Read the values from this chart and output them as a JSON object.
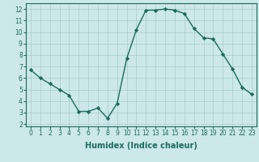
{
  "x": [
    0,
    1,
    2,
    3,
    4,
    5,
    6,
    7,
    8,
    9,
    10,
    11,
    12,
    13,
    14,
    15,
    16,
    17,
    18,
    19,
    20,
    21,
    22,
    23
  ],
  "y": [
    6.7,
    6.0,
    5.5,
    5.0,
    4.5,
    3.1,
    3.1,
    3.4,
    2.5,
    3.8,
    7.7,
    10.2,
    11.9,
    11.9,
    12.0,
    11.9,
    11.6,
    10.3,
    9.5,
    9.4,
    8.1,
    6.8,
    5.2,
    4.6
  ],
  "line_color": "#1a6b5e",
  "marker": "D",
  "marker_size": 2.2,
  "bg_color": "#cce8e8",
  "grid_color": "#aacccc",
  "xlabel": "Humidex (Indice chaleur)",
  "ylim": [
    1.8,
    12.5
  ],
  "xlim": [
    -0.5,
    23.5
  ],
  "yticks": [
    2,
    3,
    4,
    5,
    6,
    7,
    8,
    9,
    10,
    11,
    12
  ],
  "xticks": [
    0,
    1,
    2,
    3,
    4,
    5,
    6,
    7,
    8,
    9,
    10,
    11,
    12,
    13,
    14,
    15,
    16,
    17,
    18,
    19,
    20,
    21,
    22,
    23
  ],
  "tick_label_fontsize": 5.5,
  "xlabel_fontsize": 7.0,
  "line_width": 1.0
}
